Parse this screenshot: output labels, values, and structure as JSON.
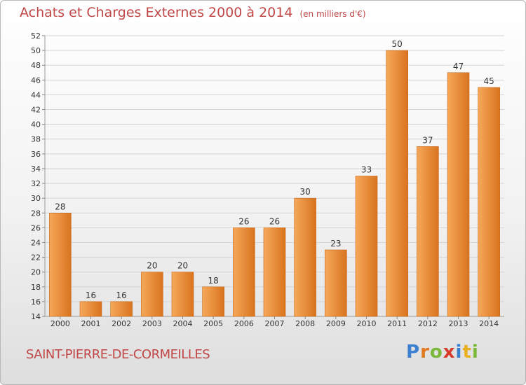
{
  "title": "Achats et Charges Externes 2000 à 2014",
  "unit": "(en milliers d'€)",
  "town": "SAINT-PIERRE-DE-CORMEILLES",
  "logo": {
    "letters": [
      "P",
      "r",
      "o",
      "x",
      "i",
      "t",
      "i"
    ],
    "colors": [
      "#3a7fd0",
      "#e07a20",
      "#7bb83a",
      "#d63a2a",
      "#3a7fd0",
      "#e8b020",
      "#7bb83a"
    ]
  },
  "colors": {
    "bar_light": "#f6a85a",
    "bar_dark": "#d8741e",
    "bar_edge": "#c9691a",
    "title": "#c04848",
    "axis_text": "#333333"
  },
  "chart_data": {
    "type": "bar",
    "title": "Achats et Charges Externes 2000 à 2014",
    "categories": [
      "2000",
      "2001",
      "2002",
      "2003",
      "2004",
      "2005",
      "2006",
      "2007",
      "2008",
      "2009",
      "2010",
      "2011",
      "2012",
      "2013",
      "2014"
    ],
    "values": [
      28,
      16,
      16,
      20,
      20,
      18,
      26,
      26,
      30,
      23,
      33,
      50,
      37,
      47,
      45
    ],
    "ylim": [
      14,
      52
    ],
    "yticks": [
      14,
      16,
      18,
      20,
      22,
      24,
      26,
      28,
      30,
      32,
      34,
      36,
      38,
      40,
      42,
      44,
      46,
      48,
      50,
      52
    ],
    "grid": true,
    "xlabel": "",
    "ylabel": ""
  }
}
